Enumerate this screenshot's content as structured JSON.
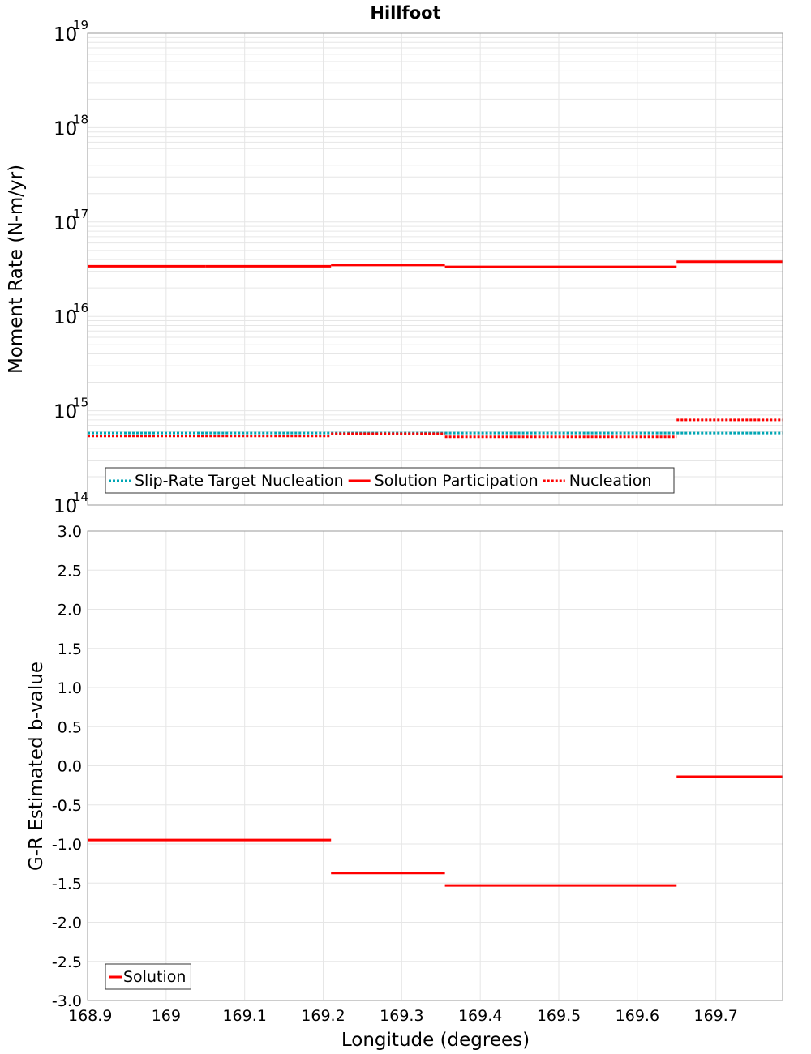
{
  "chart_data": [
    {
      "type": "line",
      "title": "Hillfoot",
      "ylabel": "Moment Rate (N-m/yr)",
      "yscale": "log",
      "ylim": [
        100000000000000.0,
        1e+19
      ],
      "y_ticks": [
        {
          "base": "10",
          "exp": "14"
        },
        {
          "base": "10",
          "exp": "15"
        },
        {
          "base": "10",
          "exp": "16"
        },
        {
          "base": "10",
          "exp": "17"
        },
        {
          "base": "10",
          "exp": "18"
        },
        {
          "base": "10",
          "exp": "19"
        }
      ],
      "xlim": [
        168.9,
        169.785
      ],
      "legend_position": "bottom-left",
      "series": [
        {
          "name": "Slip-Rate Target Nucleation",
          "color": "#00a6b4",
          "style": "dotted",
          "segments": [
            {
              "x": [
                168.9,
                169.05
              ],
              "y": 580000000000000.0
            },
            {
              "x": [
                169.05,
                169.21
              ],
              "y": 580000000000000.0
            },
            {
              "x": [
                169.21,
                169.355
              ],
              "y": 580000000000000.0
            },
            {
              "x": [
                169.355,
                169.65
              ],
              "y": 580000000000000.0
            },
            {
              "x": [
                169.65,
                169.785
              ],
              "y": 580000000000000.0
            }
          ]
        },
        {
          "name": "Solution Participation",
          "color": "#ff0000",
          "style": "solid",
          "segments": [
            {
              "x": [
                168.9,
                169.05
              ],
              "y": 3.4e+16
            },
            {
              "x": [
                169.05,
                169.21
              ],
              "y": 3.4e+16
            },
            {
              "x": [
                169.21,
                169.355
              ],
              "y": 3.5e+16
            },
            {
              "x": [
                169.355,
                169.65
              ],
              "y": 3.35e+16
            },
            {
              "x": [
                169.65,
                169.785
              ],
              "y": 3.8e+16
            }
          ]
        },
        {
          "name": "Nucleation",
          "color": "#ff0000",
          "style": "dotted",
          "segments": [
            {
              "x": [
                168.9,
                169.05
              ],
              "y": 540000000000000.0
            },
            {
              "x": [
                169.05,
                169.21
              ],
              "y": 540000000000000.0
            },
            {
              "x": [
                169.21,
                169.355
              ],
              "y": 570000000000000.0
            },
            {
              "x": [
                169.355,
                169.65
              ],
              "y": 530000000000000.0
            },
            {
              "x": [
                169.65,
                169.785
              ],
              "y": 800000000000000.0
            }
          ]
        }
      ]
    },
    {
      "type": "line",
      "title": "",
      "xlabel": "Longitude (degrees)",
      "ylabel": "G-R Estimated b-value",
      "ylim": [
        -3.0,
        3.0
      ],
      "y_ticks": [
        "3.0",
        "2.5",
        "2.0",
        "1.5",
        "1.0",
        "0.5",
        "0.0",
        "-0.5",
        "-1.0",
        "-1.5",
        "-2.0",
        "-2.5",
        "-3.0"
      ],
      "xlim": [
        168.9,
        169.785
      ],
      "x_ticks": [
        "168.9",
        "169",
        "169.1",
        "169.2",
        "169.3",
        "169.4",
        "169.5",
        "169.6",
        "169.7"
      ],
      "legend_position": "bottom-left",
      "series": [
        {
          "name": "Solution",
          "color": "#ff0000",
          "style": "solid",
          "segments": [
            {
              "x": [
                168.9,
                169.21
              ],
              "y": -0.95
            },
            {
              "x": [
                169.21,
                169.355
              ],
              "y": -1.37
            },
            {
              "x": [
                169.355,
                169.65
              ],
              "y": -1.53
            },
            {
              "x": [
                169.65,
                169.785
              ],
              "y": -0.14
            }
          ]
        }
      ]
    }
  ]
}
